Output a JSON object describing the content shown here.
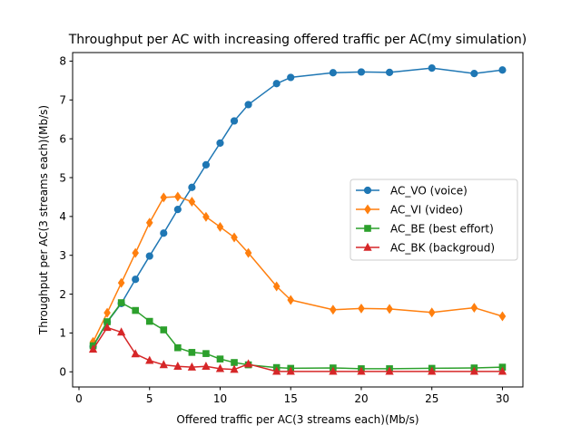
{
  "chart_data": {
    "type": "line",
    "title": "Throughput per AC with increasing offered traffic per AC(my simulation)",
    "xlabel": "Offered traffic per AC(3 streams each)(Mb/s)",
    "ylabel": "Throughput per AC(3 streams each)(Mb/s)",
    "xlim": [
      -0.45,
      31.45
    ],
    "ylim": [
      -0.39,
      8.22
    ],
    "xticks": [
      0,
      5,
      10,
      15,
      20,
      25,
      30
    ],
    "yticks": [
      0,
      1,
      2,
      3,
      4,
      5,
      6,
      7,
      8
    ],
    "grid": false,
    "legend_position": "center-right",
    "x": [
      1,
      2,
      3,
      4,
      5,
      6,
      7,
      8,
      9,
      10,
      11,
      12,
      14,
      15,
      18,
      20,
      22,
      25,
      28,
      30
    ],
    "series": [
      {
        "name": "AC_VO (voice)",
        "color": "#1f77b4",
        "marker": "circle",
        "values": [
          0.65,
          1.28,
          1.76,
          2.38,
          2.98,
          3.57,
          4.18,
          4.75,
          5.33,
          5.89,
          6.46,
          6.88,
          7.42,
          7.58,
          7.7,
          7.72,
          7.71,
          7.82,
          7.68,
          7.77
        ]
      },
      {
        "name": "AC_VI (video)",
        "color": "#ff7f0e",
        "marker": "diamond",
        "values": [
          0.77,
          1.52,
          2.29,
          3.06,
          3.84,
          4.49,
          4.51,
          4.38,
          3.99,
          3.73,
          3.46,
          3.06,
          2.2,
          1.85,
          1.6,
          1.63,
          1.62,
          1.53,
          1.65,
          1.43
        ]
      },
      {
        "name": "AC_BE (best effort)",
        "color": "#2ca02c",
        "marker": "square",
        "values": [
          0.67,
          1.29,
          1.78,
          1.58,
          1.3,
          1.08,
          0.62,
          0.5,
          0.47,
          0.33,
          0.24,
          0.18,
          0.11,
          0.09,
          0.1,
          0.08,
          0.08,
          0.09,
          0.1,
          0.12
        ]
      },
      {
        "name": "AC_BK (backgroud)",
        "color": "#d62728",
        "marker": "triangle",
        "values": [
          0.58,
          1.14,
          1.02,
          0.46,
          0.29,
          0.18,
          0.14,
          0.12,
          0.14,
          0.08,
          0.06,
          0.2,
          0.01,
          0.01,
          0.01,
          0.01,
          0.01,
          0.01,
          0.01,
          0.01
        ]
      }
    ]
  }
}
